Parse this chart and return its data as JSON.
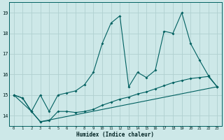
{
  "xlabel": "Humidex (Indice chaleur)",
  "bg_color": "#cde8e8",
  "grid_color": "#b0d0d0",
  "line_color": "#006060",
  "xlim": [
    -0.5,
    23.5
  ],
  "ylim": [
    13.5,
    19.5
  ],
  "yticks": [
    14,
    15,
    16,
    17,
    18,
    19
  ],
  "xticks": [
    0,
    1,
    2,
    3,
    4,
    5,
    6,
    7,
    8,
    9,
    10,
    11,
    12,
    13,
    14,
    15,
    16,
    17,
    18,
    19,
    20,
    21,
    22,
    23
  ],
  "line1_x": [
    0,
    1,
    2,
    3,
    4,
    5,
    6,
    7,
    8,
    9,
    10,
    11,
    12,
    13,
    14,
    15,
    16,
    17,
    18,
    19,
    20,
    21,
    22,
    23
  ],
  "line1_y": [
    15.0,
    14.85,
    14.2,
    13.7,
    13.75,
    14.2,
    14.2,
    14.15,
    14.2,
    14.3,
    14.5,
    14.65,
    14.8,
    14.9,
    15.05,
    15.15,
    15.3,
    15.45,
    15.6,
    15.7,
    15.8,
    15.85,
    15.9,
    15.4
  ],
  "line2_x": [
    0,
    1,
    2,
    3,
    4,
    5,
    6,
    7,
    8,
    9,
    10,
    11,
    12,
    13,
    14,
    15,
    16,
    17,
    18,
    19,
    20,
    21,
    22,
    23
  ],
  "line2_y": [
    15.0,
    14.85,
    14.2,
    15.0,
    14.2,
    15.0,
    15.1,
    15.2,
    15.5,
    16.1,
    17.5,
    18.5,
    18.85,
    15.4,
    16.1,
    15.85,
    16.2,
    18.1,
    18.0,
    19.0,
    17.5,
    16.7,
    15.95,
    15.4
  ],
  "line3_x": [
    0,
    2,
    3,
    23
  ],
  "line3_y": [
    15.0,
    14.2,
    13.7,
    15.4
  ]
}
